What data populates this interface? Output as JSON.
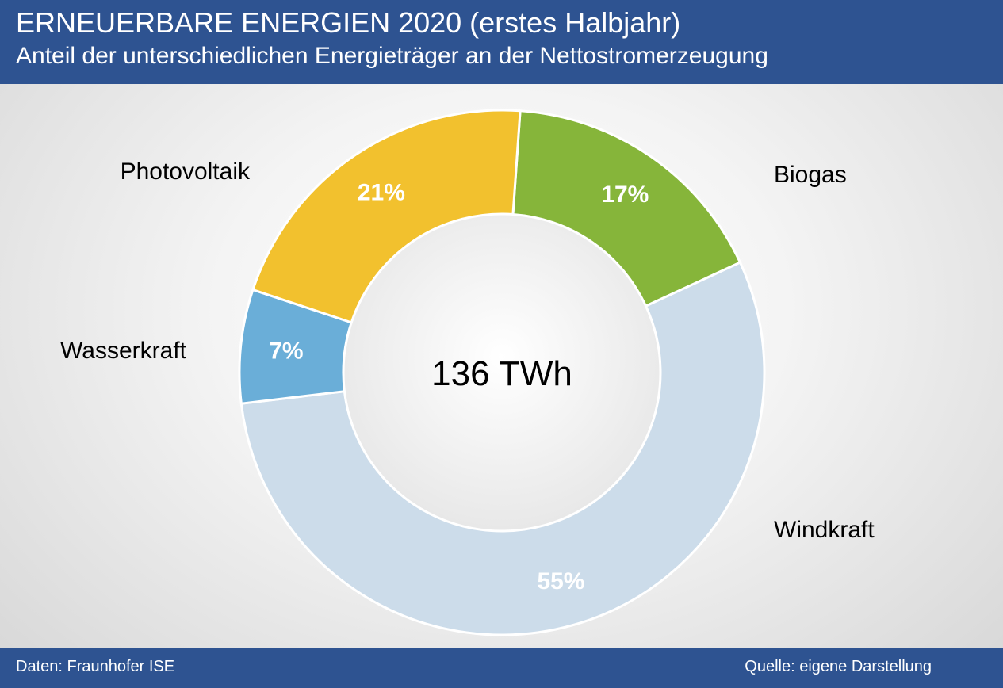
{
  "header": {
    "title": "ERNEUERBARE ENERGIEN 2020 (erstes Halbjahr)",
    "subtitle": "Anteil der unterschiedlichen Energieträger an der Nettostromerzeugung"
  },
  "footer": {
    "source_left": "Daten: Fraunhofer ISE",
    "source_right": "Quelle: eigene Darstellung"
  },
  "chart_data": {
    "type": "pie",
    "variant": "donut",
    "title": "ERNEUERBARE ENERGIEN 2020 (erstes Halbjahr)",
    "subtitle": "Anteil der unterschiedlichen Energieträger an der Nettostromerzeugung",
    "center_label": "136 TWh",
    "categories": [
      "Biogas",
      "Windkraft",
      "Wasserkraft",
      "Photovoltaik"
    ],
    "values": [
      17,
      55,
      7,
      21
    ],
    "value_labels": [
      "17%",
      "55%",
      "7%",
      "21%"
    ],
    "colors": [
      "#86b53a",
      "#ccdcea",
      "#6aaed8",
      "#f2c12e"
    ],
    "unit": "%"
  }
}
